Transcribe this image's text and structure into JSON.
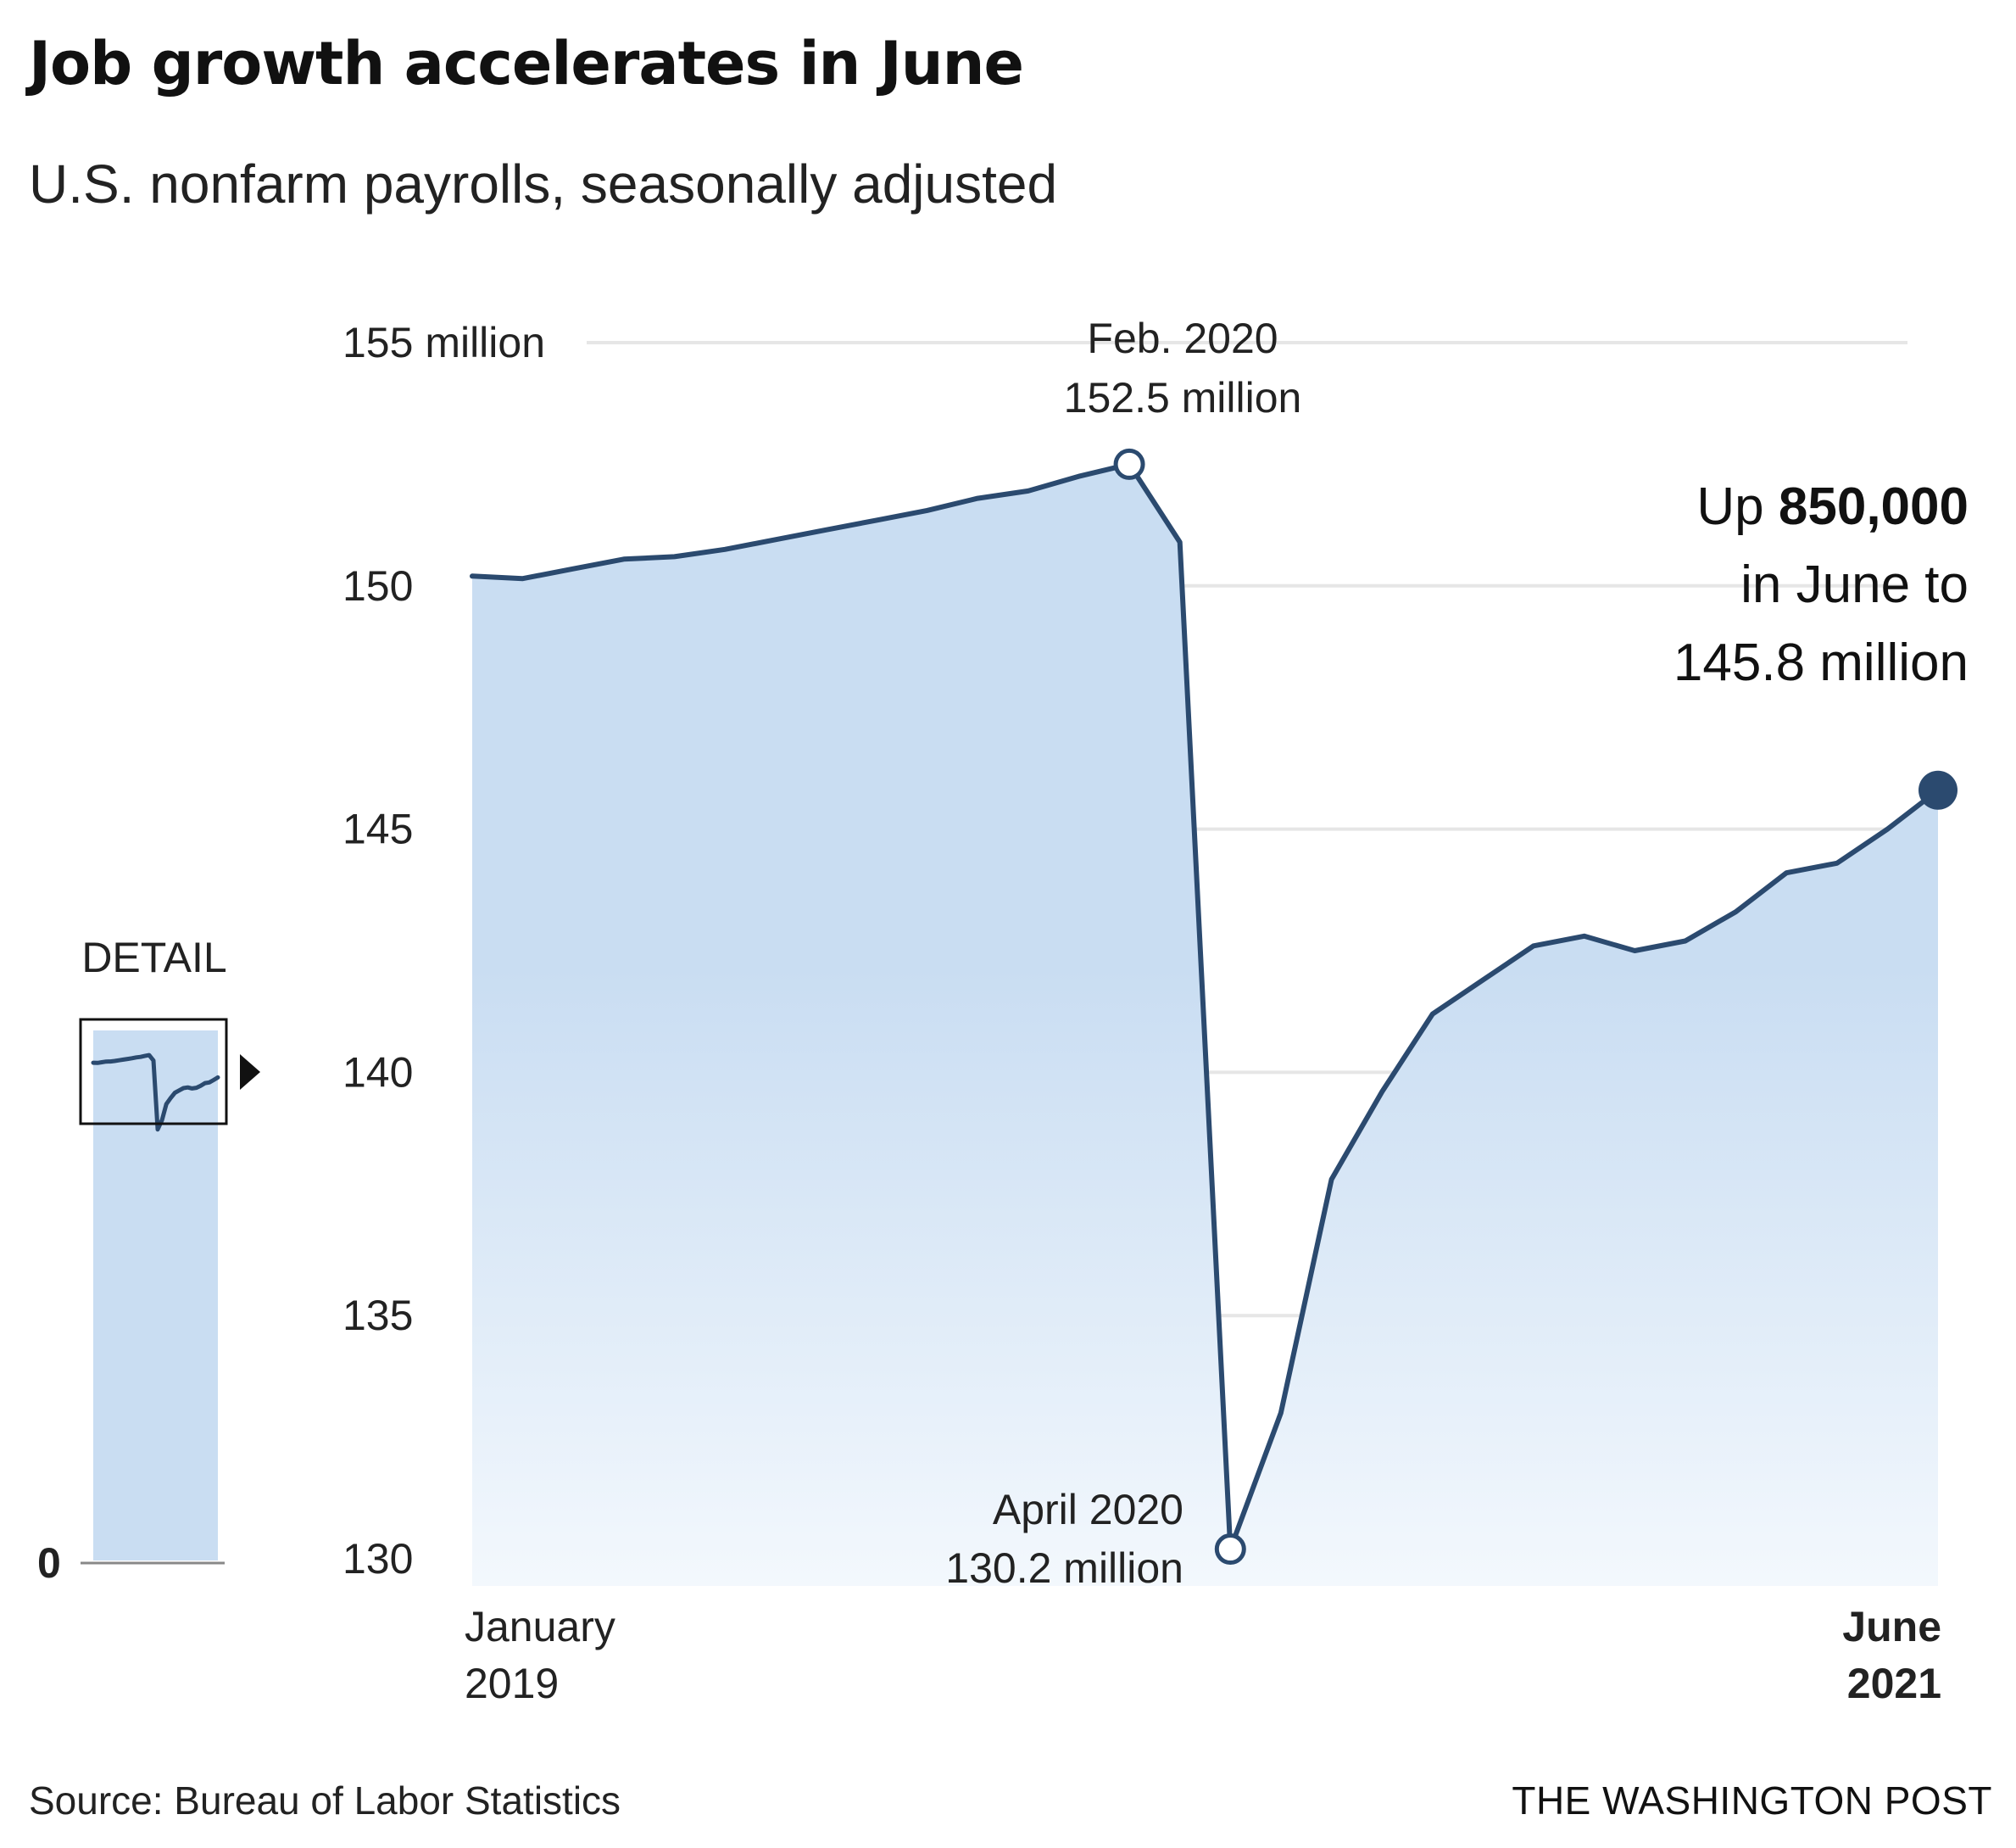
{
  "chart_data": {
    "type": "area",
    "title": "Job growth accelerates in June",
    "subtitle": "U.S. nonfarm payrolls, seasonally adjusted",
    "y_unit": "million",
    "ylim": [
      130,
      155
    ],
    "y_ticks": [
      {
        "value": 155,
        "label": "155 million"
      },
      {
        "value": 150,
        "label": "150"
      },
      {
        "value": 145,
        "label": "145"
      },
      {
        "value": 140,
        "label": "140"
      },
      {
        "value": 135,
        "label": "135"
      },
      {
        "value": 130,
        "label": "130"
      }
    ],
    "x_labels": {
      "start": {
        "line1": "January",
        "line2": "2019"
      },
      "end": {
        "line1": "June",
        "line2": "2021"
      }
    },
    "series": [
      {
        "x": [
          "Jan 2019",
          "Feb 2019",
          "Mar 2019",
          "Apr 2019",
          "May 2019",
          "Jun 2019",
          "Jul 2019",
          "Aug 2019",
          "Sep 2019",
          "Oct 2019",
          "Nov 2019",
          "Dec 2019",
          "Jan 2020",
          "Feb 2020",
          "Mar 2020",
          "Apr 2020",
          "May 2020",
          "Jun 2020",
          "Jul 2020",
          "Aug 2020",
          "Sep 2020",
          "Oct 2020",
          "Nov 2020",
          "Dec 2020",
          "Jan 2021",
          "Feb 2021",
          "Mar 2021",
          "Apr 2021",
          "May 2021",
          "Jun 2021"
        ],
        "values": [
          150.2,
          150.15,
          150.35,
          150.55,
          150.6,
          150.75,
          150.95,
          151.15,
          151.35,
          151.55,
          151.8,
          151.95,
          152.25,
          152.5,
          150.9,
          130.2,
          133.0,
          137.8,
          139.6,
          141.2,
          141.9,
          142.6,
          142.8,
          142.5,
          142.7,
          143.3,
          144.1,
          144.3,
          145.0,
          145.8
        ]
      }
    ],
    "annotations": {
      "peak": {
        "line1": "Feb. 2020",
        "line2": "152.5 million"
      },
      "trough": {
        "line1": "April 2020",
        "line2": "130.2 million"
      },
      "latest": {
        "prefix": "Up ",
        "bold": "850,000",
        "line2": "in June to",
        "line3": "145.8 million"
      }
    },
    "inset": {
      "label": "DETAIL",
      "zero_label": "0"
    },
    "colors": {
      "line": "#2b4a6f",
      "area_top": "#c9ddf2",
      "area_bottom": "#f3f8fd",
      "grid": "#e6e6e6",
      "dot": "#2b4a6f"
    },
    "grid": true,
    "legend": "none"
  },
  "footer": {
    "source": "Source: Bureau of Labor Statistics",
    "publisher": "THE WASHINGTON POST"
  }
}
